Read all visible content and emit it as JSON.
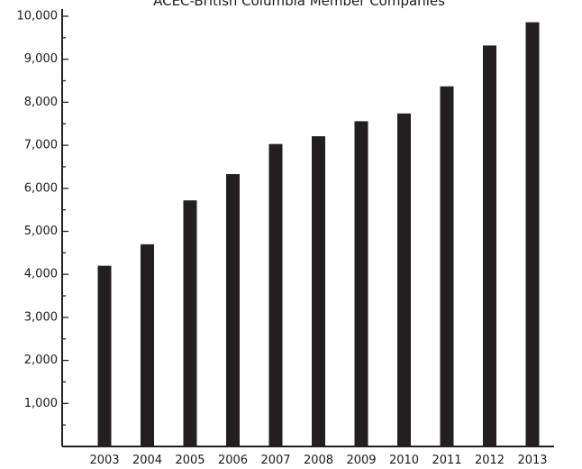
{
  "chart_data": {
    "type": "bar",
    "title": "ACEC-British Columbia Member Companies",
    "xlabel": "",
    "ylabel": "",
    "categories": [
      "2003",
      "2004",
      "2005",
      "2006",
      "2007",
      "2008",
      "2009",
      "2010",
      "2011",
      "2012",
      "2013"
    ],
    "values": [
      4200,
      4700,
      5720,
      6330,
      7030,
      7210,
      7560,
      7740,
      8370,
      9320,
      9860
    ],
    "ylim": [
      0,
      10000
    ],
    "yticks": [
      1000,
      2000,
      3000,
      4000,
      5000,
      6000,
      7000,
      8000,
      9000,
      10000
    ],
    "ytick_labels": [
      "1,000",
      "2,000",
      "3,000",
      "4,000",
      "5,000",
      "6,000",
      "7,000",
      "8,000",
      "9,000",
      "10,000"
    ],
    "grid": false,
    "legend": "none",
    "bar_color": "#231f20",
    "axis_color": "#231f20"
  }
}
